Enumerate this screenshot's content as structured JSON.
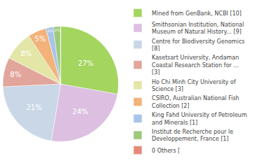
{
  "chart_data": {
    "type": "pie",
    "categories": [
      "Mined from GenBank, NCBI [10]",
      "Smithsonian Institution, National Museum of Natural History... [9]",
      "Centre for Biodiversity Genomics [8]",
      "Kasetsart University, Andaman Coastal Research Station for ... [3]",
      "Ho Chi Minh City University of Science [3]",
      "CSIRO, Australian National Fish Collection [2]",
      "King Fahd University of Petroleum and Minerals [1]",
      "Institut de Recherche pour le Developpement, France [1]",
      "0 Others ["
    ],
    "values": [
      27,
      24,
      21,
      8,
      8,
      5,
      2,
      2,
      0
    ],
    "value_labels": [
      "27%",
      "24%",
      "21%",
      "8%",
      "8%",
      "5%",
      "2%",
      "2%",
      null
    ],
    "colors": [
      "#a3d55f",
      "#ddbfe2",
      "#c9d7e7",
      "#e2a59b",
      "#e3e6a7",
      "#f2b27a",
      "#a8c5e8",
      "#9ec97a",
      "#e58a7a"
    ],
    "legend": "right"
  }
}
